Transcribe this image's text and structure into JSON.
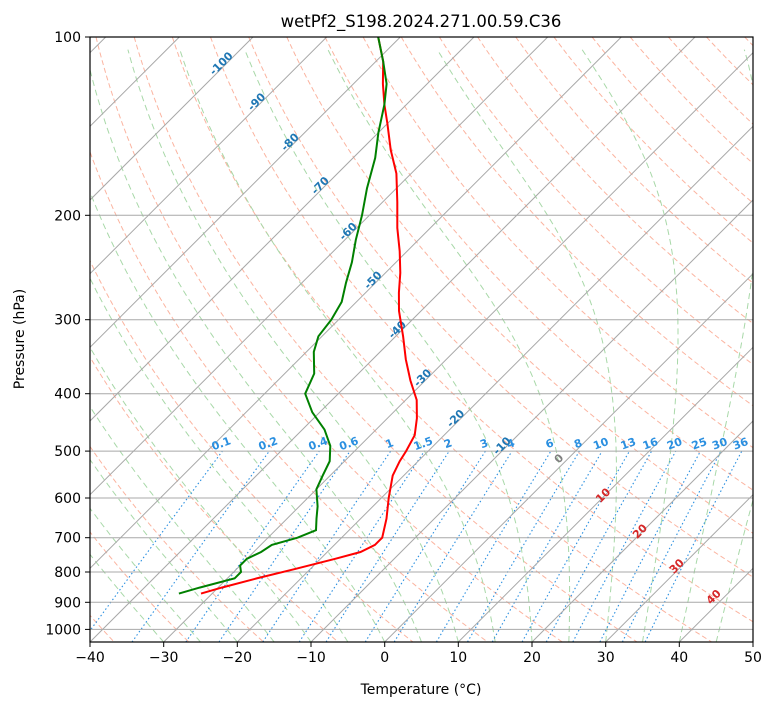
{
  "chart_data": {
    "type": "line",
    "subtype": "skew-t log-p diagram",
    "title": "wetPf2_S198.2024.271.00.59.C36",
    "xlabel": "Temperature (°C)",
    "ylabel": "Pressure (hPa)",
    "xlim": [
      -40,
      50
    ],
    "ylim": [
      1050,
      100
    ],
    "y_scale": "log",
    "x_ticks": [
      -40,
      -30,
      -20,
      -10,
      0,
      10,
      20,
      30,
      40,
      50
    ],
    "y_ticks": [
      100,
      200,
      300,
      400,
      500,
      600,
      700,
      800,
      900,
      1000
    ],
    "grid": true,
    "series": [
      {
        "color": "#ff0000",
        "points": [
          {
            "p": 870,
            "t": -31.5
          },
          {
            "p": 850,
            "t": -29.5
          },
          {
            "p": 820,
            "t": -26.0
          },
          {
            "p": 790,
            "t": -22.0
          },
          {
            "p": 760,
            "t": -18.0
          },
          {
            "p": 740,
            "t": -15.5
          },
          {
            "p": 720,
            "t": -14.5
          },
          {
            "p": 700,
            "t": -14.5
          },
          {
            "p": 650,
            "t": -16.5
          },
          {
            "p": 600,
            "t": -19.0
          },
          {
            "p": 550,
            "t": -21.5
          },
          {
            "p": 520,
            "t": -22.5
          },
          {
            "p": 500,
            "t": -23.0
          },
          {
            "p": 470,
            "t": -24.0
          },
          {
            "p": 440,
            "t": -26.0
          },
          {
            "p": 410,
            "t": -28.5
          },
          {
            "p": 380,
            "t": -32.0
          },
          {
            "p": 350,
            "t": -35.5
          },
          {
            "p": 320,
            "t": -39.0
          },
          {
            "p": 290,
            "t": -43.0
          },
          {
            "p": 270,
            "t": -45.5
          },
          {
            "p": 250,
            "t": -48.0
          },
          {
            "p": 230,
            "t": -51.0
          },
          {
            "p": 210,
            "t": -54.5
          },
          {
            "p": 190,
            "t": -58.0
          },
          {
            "p": 170,
            "t": -62.0
          },
          {
            "p": 155,
            "t": -66.0
          },
          {
            "p": 140,
            "t": -70.0
          },
          {
            "p": 130,
            "t": -73.0
          },
          {
            "p": 120,
            "t": -76.0
          },
          {
            "p": 110,
            "t": -79.0
          },
          {
            "p": 100,
            "t": -83.0
          }
        ]
      },
      {
        "color": "#008000",
        "points": [
          {
            "p": 870,
            "t": -34.5
          },
          {
            "p": 850,
            "t": -32.5
          },
          {
            "p": 820,
            "t": -29.0
          },
          {
            "p": 800,
            "t": -29.0
          },
          {
            "p": 780,
            "t": -30.0
          },
          {
            "p": 760,
            "t": -30.0
          },
          {
            "p": 740,
            "t": -29.0
          },
          {
            "p": 720,
            "t": -28.5
          },
          {
            "p": 700,
            "t": -26.0
          },
          {
            "p": 680,
            "t": -24.5
          },
          {
            "p": 650,
            "t": -26.0
          },
          {
            "p": 620,
            "t": -27.5
          },
          {
            "p": 580,
            "t": -30.0
          },
          {
            "p": 550,
            "t": -31.0
          },
          {
            "p": 520,
            "t": -32.0
          },
          {
            "p": 490,
            "t": -34.0
          },
          {
            "p": 460,
            "t": -37.0
          },
          {
            "p": 430,
            "t": -41.0
          },
          {
            "p": 400,
            "t": -44.5
          },
          {
            "p": 370,
            "t": -46.0
          },
          {
            "p": 340,
            "t": -49.0
          },
          {
            "p": 320,
            "t": -50.5
          },
          {
            "p": 300,
            "t": -51.0
          },
          {
            "p": 280,
            "t": -52.0
          },
          {
            "p": 260,
            "t": -54.0
          },
          {
            "p": 240,
            "t": -56.0
          },
          {
            "p": 220,
            "t": -58.5
          },
          {
            "p": 200,
            "t": -61.0
          },
          {
            "p": 180,
            "t": -64.0
          },
          {
            "p": 160,
            "t": -67.0
          },
          {
            "p": 145,
            "t": -70.0
          },
          {
            "p": 130,
            "t": -73.0
          },
          {
            "p": 120,
            "t": -75.5
          },
          {
            "p": 110,
            "t": -79.0
          },
          {
            "p": 100,
            "t": -83.0
          }
        ]
      }
    ],
    "annotations": {
      "dry_adiabat_labels": [
        "-100",
        "-90",
        "-80",
        "-70",
        "-60",
        "-50",
        "-40",
        "-30",
        "-20",
        "-10"
      ],
      "mixing_ratio_labels": [
        "0.1",
        "0.2",
        "0.4",
        "0.6",
        "1",
        "1.5",
        "2",
        "3",
        "4",
        "6",
        "8",
        "10",
        "13",
        "16",
        "20",
        "25",
        "30",
        "36"
      ],
      "moist_adiabat_labels": [
        "0",
        "10",
        "20",
        "30",
        "40"
      ]
    },
    "colors": {
      "dry_adiabat_label": "#1f77b4",
      "mixing_ratio_label": "#2a8fe0",
      "moist_adiabat_label": "#d62728",
      "zero_label": "#808080"
    }
  }
}
